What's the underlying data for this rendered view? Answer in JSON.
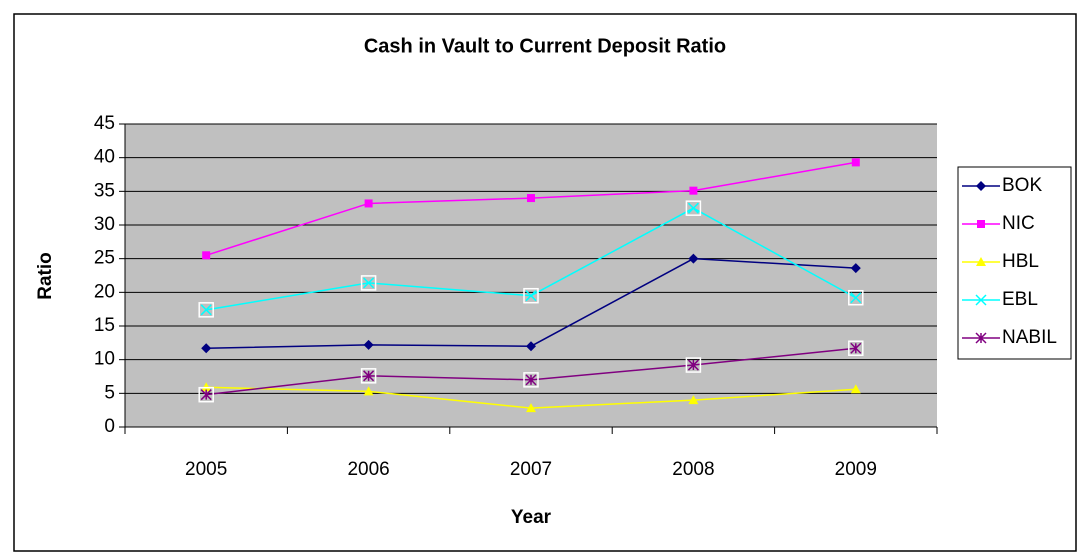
{
  "chart_data": {
    "type": "line",
    "title": "Cash in Vault to Current Deposit Ratio",
    "x_label": "Year",
    "y_label": "Ratio",
    "categories": [
      "2005",
      "2006",
      "2007",
      "2008",
      "2009"
    ],
    "series": [
      {
        "name": "BOK",
        "color": "#000080",
        "marker": "diamond",
        "values": [
          11.7,
          12.2,
          12,
          25,
          23.6
        ]
      },
      {
        "name": "NIC",
        "color": "#ff00ff",
        "marker": "square",
        "values": [
          25.5,
          33.2,
          34,
          35.1,
          39.3
        ]
      },
      {
        "name": "HBL",
        "color": "#ffff00",
        "marker": "triangle",
        "values": [
          5.9,
          5.3,
          2.8,
          4,
          5.6
        ]
      },
      {
        "name": "EBL",
        "color": "#00ffff",
        "marker": "x",
        "values": [
          17.4,
          21.4,
          19.5,
          32.5,
          19.2
        ]
      },
      {
        "name": "NABIL",
        "color": "#800080",
        "marker": "star",
        "values": [
          4.8,
          7.6,
          7,
          9.2,
          11.7
        ]
      }
    ],
    "ylim": [
      0,
      45
    ],
    "yticks": [
      0,
      5,
      10,
      15,
      20,
      25,
      30,
      35,
      40,
      45
    ],
    "grid": true,
    "plot_background": "#c0c0c0",
    "legend": "right"
  }
}
